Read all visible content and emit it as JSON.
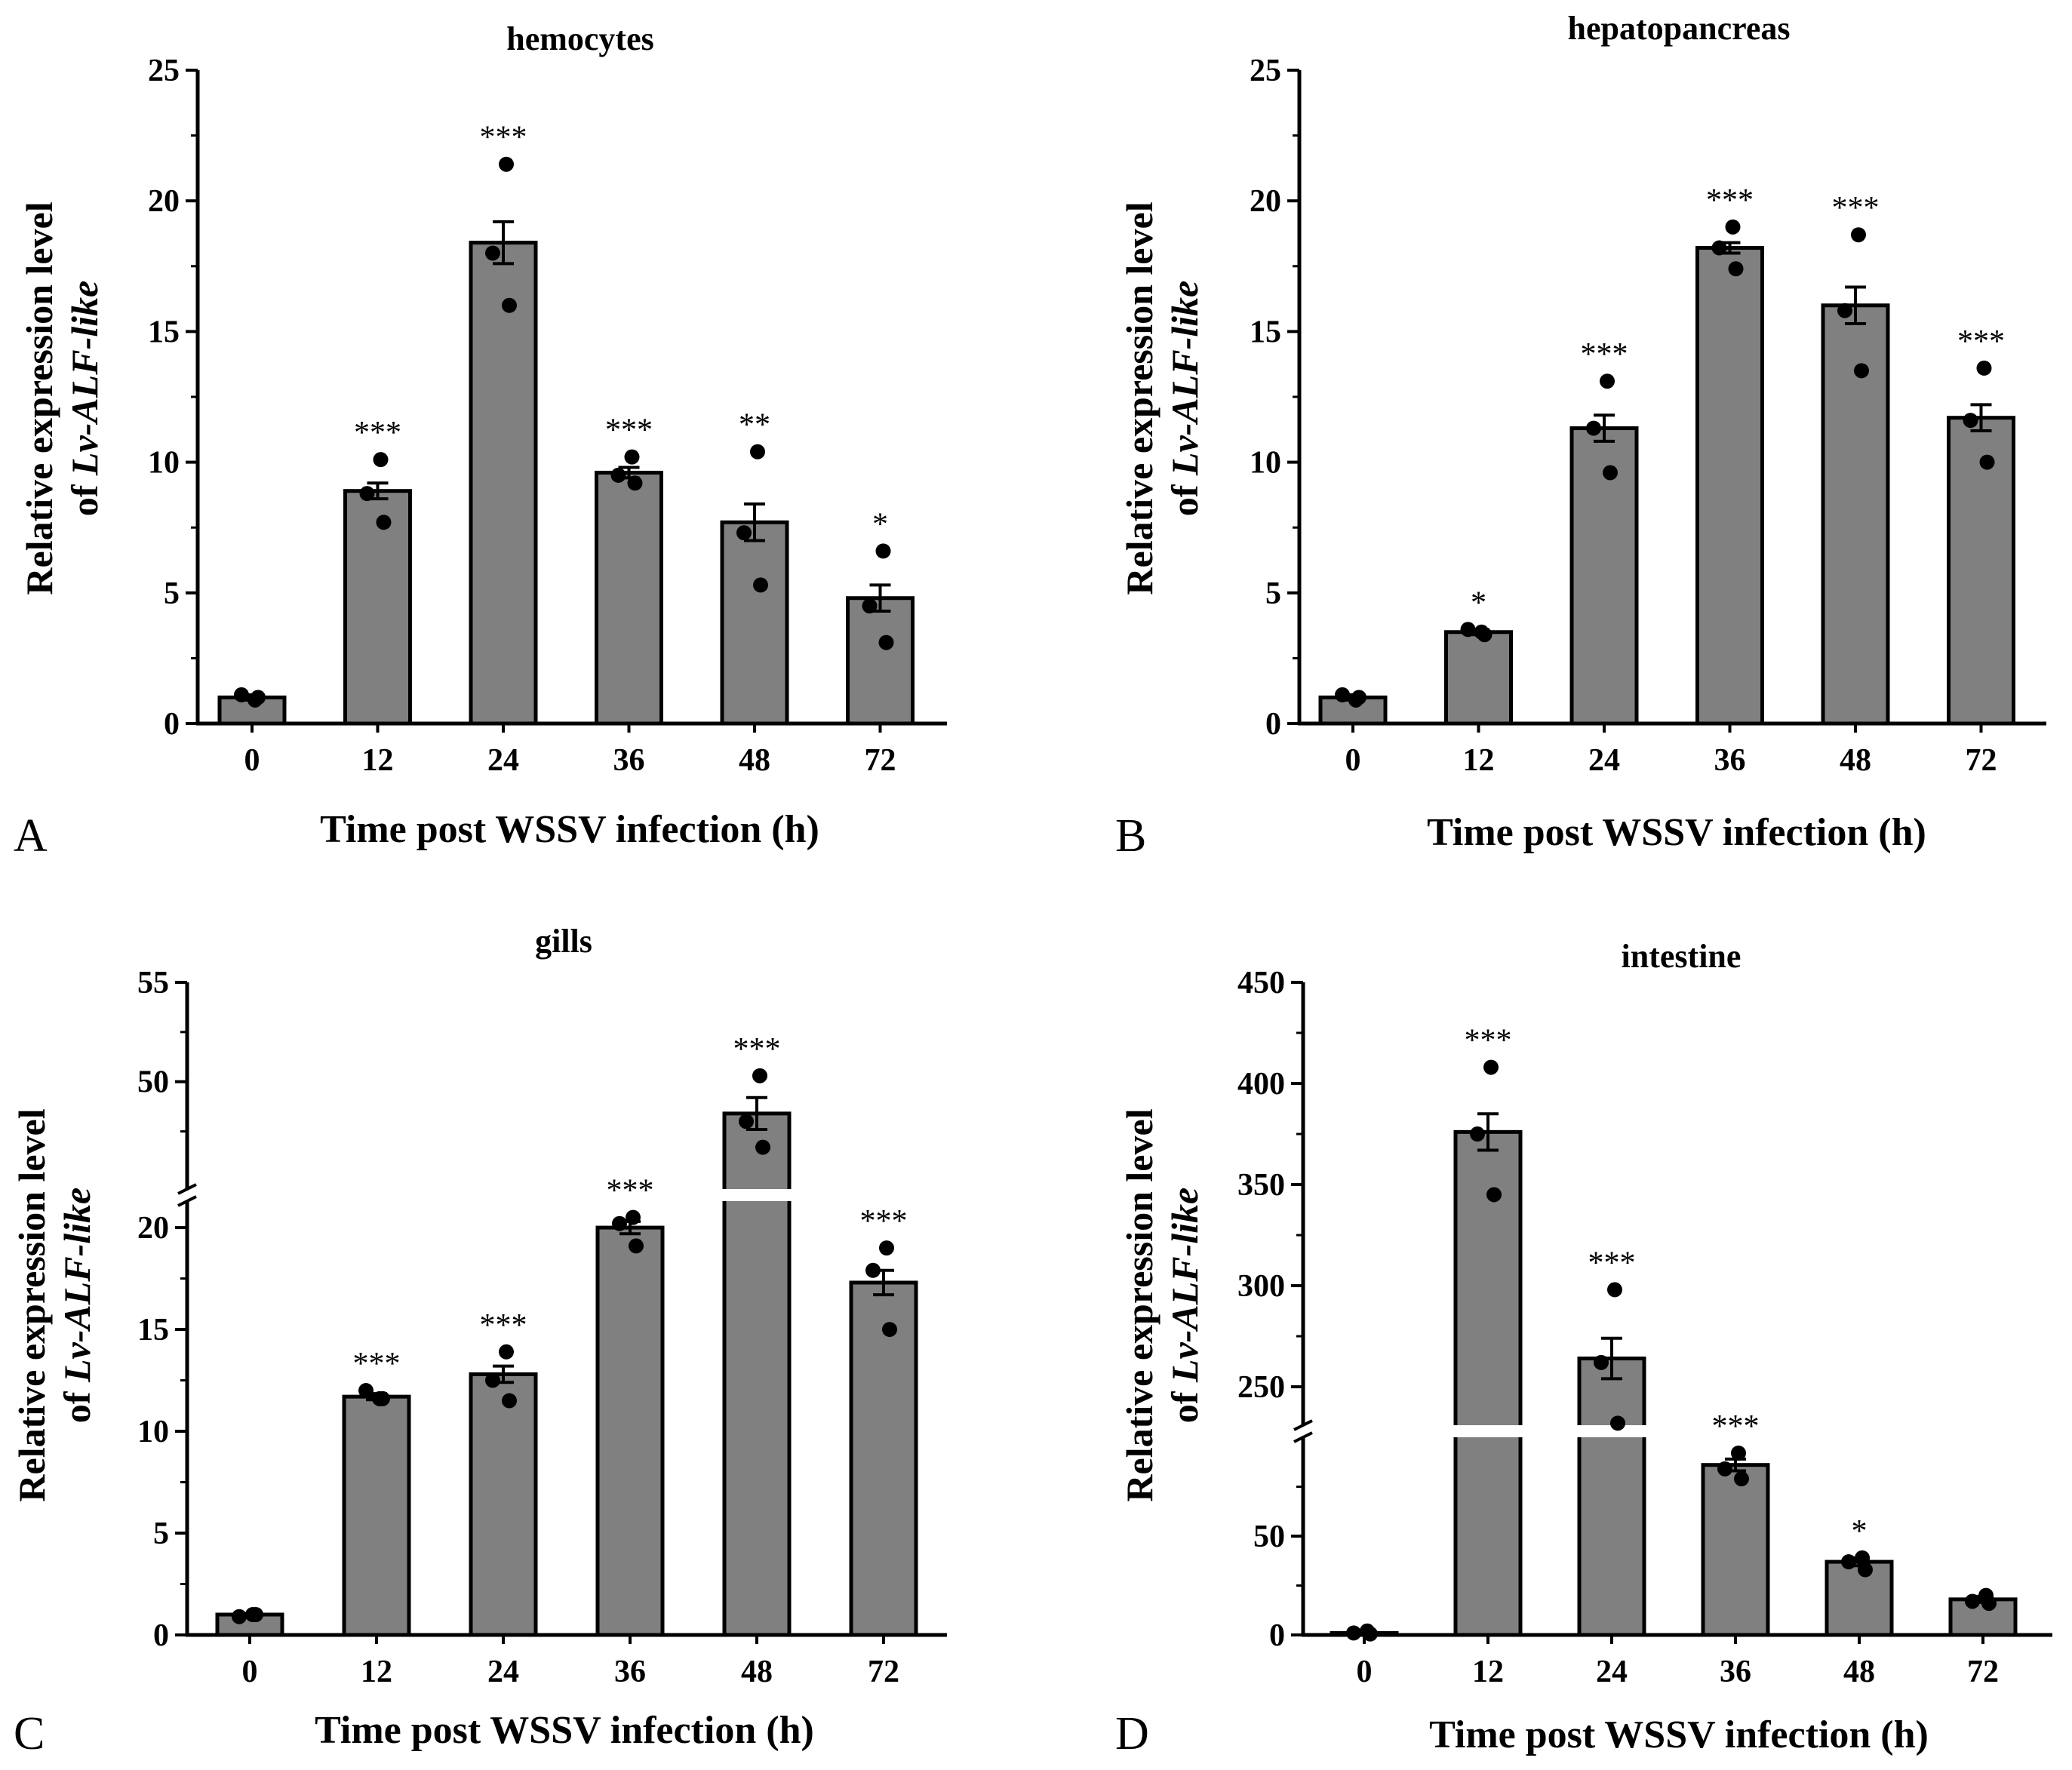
{
  "chart_data": [
    {
      "type": "bar",
      "panel": "A",
      "title": "hemocytes",
      "xlabel": "Time post WSSV infection (h)",
      "ylabel": {
        "line1": "Relative expression level",
        "prefix": "of ",
        "gene": "Lv-ALF-like"
      },
      "categories": [
        "0",
        "12",
        "24",
        "36",
        "48",
        "72"
      ],
      "values": [
        1.0,
        8.9,
        18.4,
        9.6,
        7.7,
        4.8
      ],
      "errors": [
        0.1,
        0.3,
        0.8,
        0.2,
        0.7,
        0.5
      ],
      "points": [
        [
          0.9,
          1.1,
          1.0
        ],
        [
          10.1,
          8.8,
          7.7
        ],
        [
          21.4,
          18.0,
          16.0
        ],
        [
          10.2,
          9.5,
          9.2
        ],
        [
          10.4,
          7.3,
          5.3
        ],
        [
          6.6,
          4.5,
          3.1
        ]
      ],
      "significance": [
        "",
        "***",
        "***",
        "***",
        "**",
        "*"
      ],
      "ylim": [
        0,
        25
      ],
      "yticks": [
        0,
        5,
        10,
        15,
        20,
        25
      ],
      "axis_break": null
    },
    {
      "type": "bar",
      "panel": "B",
      "title": "hepatopancreas",
      "xlabel": "Time post WSSV infection (h)",
      "ylabel": {
        "line1": "Relative expression level",
        "prefix": "of ",
        "gene": "Lv-ALF-like"
      },
      "categories": [
        "0",
        "12",
        "24",
        "36",
        "48",
        "72"
      ],
      "values": [
        1.0,
        3.5,
        11.3,
        18.2,
        16.0,
        11.7
      ],
      "errors": [
        0.1,
        0.1,
        0.5,
        0.2,
        0.7,
        0.5
      ],
      "points": [
        [
          0.9,
          1.1,
          1.0
        ],
        [
          3.5,
          3.6,
          3.4
        ],
        [
          13.1,
          11.3,
          9.6
        ],
        [
          19.0,
          18.2,
          17.4
        ],
        [
          18.7,
          15.8,
          13.5
        ],
        [
          13.6,
          11.6,
          10.0
        ]
      ],
      "significance": [
        "",
        "*",
        "***",
        "***",
        "***",
        "***"
      ],
      "ylim": [
        0,
        25
      ],
      "yticks": [
        0,
        5,
        10,
        15,
        20,
        25
      ],
      "axis_break": null
    },
    {
      "type": "bar",
      "panel": "C",
      "title": "gills",
      "xlabel": "Time post WSSV infection (h)",
      "ylabel": {
        "line1": "Relative expression level",
        "prefix": "of ",
        "gene": "Lv-ALF-like"
      },
      "categories": [
        "0",
        "12",
        "24",
        "36",
        "48",
        "72"
      ],
      "values": [
        1.0,
        11.7,
        12.8,
        20.0,
        48.4,
        17.3
      ],
      "errors": [
        0.05,
        0.15,
        0.4,
        0.3,
        0.8,
        0.6
      ],
      "points": [
        [
          1.0,
          0.9,
          1.0
        ],
        [
          11.6,
          12.0,
          11.6
        ],
        [
          13.9,
          12.5,
          11.5
        ],
        [
          20.5,
          20.2,
          19.1
        ],
        [
          50.3,
          48.0,
          46.7
        ],
        [
          19.0,
          17.9,
          15.0
        ]
      ],
      "significance": [
        "",
        "***",
        "***",
        "***",
        "***",
        "***"
      ],
      "ylim": [
        0,
        55
      ],
      "yticks": [
        0,
        5,
        10,
        15,
        20,
        50,
        55
      ],
      "axis_break": [
        21.3,
        44.6
      ]
    },
    {
      "type": "bar",
      "panel": "D",
      "title": "intestine",
      "xlabel": "Time post WSSV infection (h)",
      "ylabel": {
        "line1": "Relative expression level",
        "prefix": "of ",
        "gene": "Lv-ALF-like"
      },
      "categories": [
        "0",
        "12",
        "24",
        "36",
        "48",
        "72"
      ],
      "values": [
        1,
        376,
        264,
        86,
        37,
        18
      ],
      "errors": [
        0.5,
        9,
        10,
        3,
        2,
        1.5
      ],
      "points": [
        [
          2,
          1,
          0.5
        ],
        [
          408,
          375,
          345
        ],
        [
          298,
          262,
          232
        ],
        [
          92,
          84,
          79
        ],
        [
          39,
          37,
          33
        ],
        [
          20,
          17,
          16
        ]
      ],
      "significance": [
        "",
        "***",
        "***",
        "***",
        "*",
        ""
      ],
      "ylim": [
        0,
        450
      ],
      "yticks": [
        0,
        50,
        250,
        300,
        350,
        400,
        450
      ],
      "axis_break": [
        100,
        231
      ]
    }
  ],
  "colors": {
    "bar": "#808080",
    "outline": "#000000",
    "point": "#000000",
    "background": "#ffffff"
  }
}
